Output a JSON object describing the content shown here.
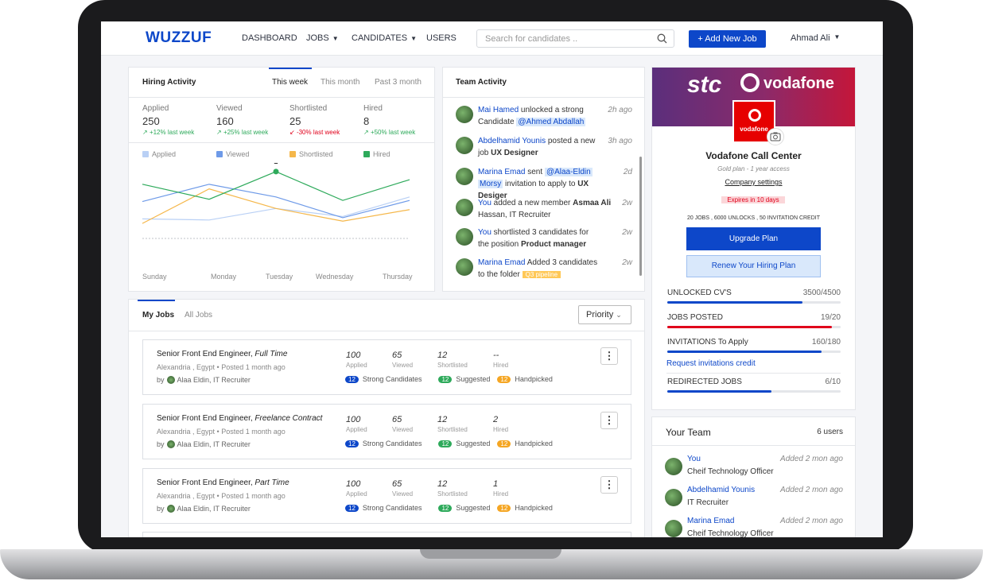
{
  "brand": {
    "logo": "WUZZUF",
    "accent": "#0d47c9"
  },
  "nav": {
    "items": [
      {
        "label": "DASHBOARD"
      },
      {
        "label": "JOBS"
      },
      {
        "label": "CANDIDATES"
      },
      {
        "label": "USERS"
      }
    ],
    "search_placeholder": "Search for candidates ..",
    "add_job": "+ Add New Job",
    "user": "Ahmad Ali"
  },
  "hiring": {
    "title": "Hiring Activity",
    "tabs": [
      "This week",
      "This month",
      "Past 3 month"
    ],
    "stats": [
      {
        "label": "Applied",
        "value": "250",
        "trend": "+12%",
        "trend_note": "last week",
        "dir": "up"
      },
      {
        "label": "Viewed",
        "value": "160",
        "trend": "+25%",
        "trend_note": "last week",
        "dir": "up"
      },
      {
        "label": "Shortlisted",
        "value": "25",
        "trend": "-30%",
        "trend_note": "last week",
        "dir": "down"
      },
      {
        "label": "Hired",
        "value": "8",
        "trend": "+50%",
        "trend_note": "last week",
        "dir": "up"
      }
    ],
    "legend": [
      "Applied",
      "Viewed",
      "Shortlisted",
      "Hired"
    ],
    "days": [
      "Sunday",
      "Monday",
      "Tuesday",
      "Wednesday",
      "Thursday"
    ],
    "point_label": "2"
  },
  "chart_data": {
    "type": "line",
    "x": [
      "Sunday",
      "Monday",
      "Tuesday",
      "Wednesday",
      "Thursday"
    ],
    "series": [
      {
        "name": "Applied",
        "color": "#b9d0f5",
        "values": [
          1.7,
          1.6,
          2.6,
          1.9,
          3.6
        ]
      },
      {
        "name": "Viewed",
        "color": "#6e9ae8",
        "values": [
          3.2,
          4.7,
          3.6,
          1.8,
          3.3
        ]
      },
      {
        "name": "Shortlisted",
        "color": "#f5b74a",
        "values": [
          1.3,
          4.3,
          2.6,
          1.5,
          2.5
        ]
      },
      {
        "name": "Hired",
        "color": "#2eaa5b",
        "values": [
          4.7,
          3.4,
          5.8,
          3.3,
          5.1
        ]
      }
    ],
    "annotation": {
      "series": "Hired",
      "x": "Tuesday",
      "label": "2"
    }
  },
  "team_activity": {
    "title": "Team Activity",
    "items": [
      {
        "name": "Mai Hamed",
        "text1": "unlocked a strong",
        "text2": "Candidate",
        "tag": "@Ahmed Abdallah",
        "time": "2h ago"
      },
      {
        "name": "Abdelhamid Younis",
        "text1": "posted a new",
        "text2": "job",
        "bold": "UX Designer",
        "time": "3h ago"
      },
      {
        "name": "Marina Emad",
        "text1": "sent",
        "tag1": "@Alaa-Eldin",
        "tag2": "Morsy",
        "text2": "invitation to apply to",
        "bold": "UX Desiger",
        "time": "2d"
      },
      {
        "name": "You",
        "text1": "added a new member",
        "bold": "Asmaa Ali",
        "text2": "Hassan, IT Recruiter",
        "time": "2w"
      },
      {
        "name": "You",
        "text1": "shortlisted 3 candidates  for",
        "text2": "the position",
        "bold": "Product manager",
        "time": "2w"
      },
      {
        "name": "Marina Emad",
        "text1": "Added 3 candidates",
        "text2": "to the folder",
        "tag": "Q3 pipeline",
        "time": "2w"
      }
    ]
  },
  "jobs": {
    "tabs": [
      "My Jobs",
      "All Jobs"
    ],
    "sort": "Priority",
    "stat_labels": [
      "Applied",
      "Viewed",
      "Shortlisted",
      "Hired"
    ],
    "badge_labels": [
      "Strong Candidates",
      "Suggested",
      "Handpicked"
    ],
    "items": [
      {
        "title": "Senior Front End Engineer,",
        "type": "Full Time",
        "loc": "Alexandria , Egypt • Posted 1 month ago",
        "by": "by",
        "recruiter": "Alaa Eldin, IT Recruiter",
        "stats": [
          "100",
          "65",
          "12",
          "--"
        ],
        "badges": [
          "12",
          "12",
          "12"
        ]
      },
      {
        "title": "Senior Front End Engineer,",
        "type": "Freelance Contract",
        "loc": "Alexandria , Egypt • Posted 1 month ago",
        "by": "by",
        "recruiter": "Alaa Eldin, IT Recruiter",
        "stats": [
          "100",
          "65",
          "12",
          "2"
        ],
        "badges": [
          "12",
          "12",
          "12"
        ]
      },
      {
        "title": "Senior Front End Engineer,",
        "type": "Part Time",
        "loc": "Alexandria , Egypt • Posted 1 month ago",
        "by": "by",
        "recruiter": "Alaa Eldin, IT Recruiter",
        "stats": [
          "100",
          "65",
          "12",
          "1"
        ],
        "badges": [
          "12",
          "12",
          "12"
        ]
      }
    ]
  },
  "company": {
    "banner_left": "stc",
    "banner_right": "vodafone",
    "logo_text": "vodafone",
    "name": "Vodafone Call Center",
    "plan": "Gold plan - 1 year access",
    "settings": "Company settings",
    "expiry": "Expires in 10 days",
    "credits": "20 JOBS , 6000 UNLOCKS , 50 INVITATION CREDIT",
    "upgrade": "Upgrade Plan",
    "renew": "Renew Your Hiring Plan",
    "usage": [
      {
        "label": "UNLOCKED CV'S",
        "value": "3500/4500",
        "fraction": 0.78,
        "color": "#0d47c9"
      },
      {
        "label": "JOBS POSTED",
        "value": "19/20",
        "fraction": 0.95,
        "color": "#e0001b"
      },
      {
        "label": "INVITATIONS To Apply",
        "value": "160/180",
        "fraction": 0.89,
        "color": "#0d47c9"
      },
      {
        "label": "REDIRECTED JOBS",
        "value": "6/10",
        "fraction": 0.6,
        "color": "#0d47c9"
      }
    ],
    "request": "Request invitations credit"
  },
  "team": {
    "title": "Your Team",
    "count": "6 users",
    "members": [
      {
        "name": "You",
        "role": "Cheif Technology Officer",
        "added": "Added 2 mon ago"
      },
      {
        "name": "Abdelhamid Younis",
        "role": "IT Recruiter",
        "added": "Added 2 mon ago"
      },
      {
        "name": "Marina Emad",
        "role": "Cheif Technology Officer",
        "added": "Added 2 mon ago"
      }
    ]
  }
}
